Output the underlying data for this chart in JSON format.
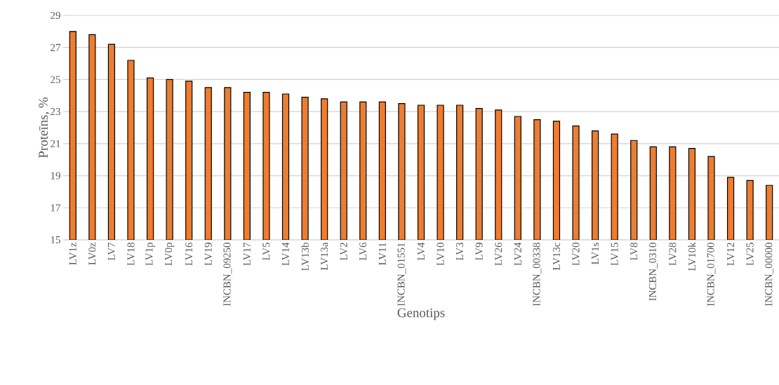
{
  "chart_data": {
    "type": "bar",
    "xlabel": "Genotips",
    "ylabel": "Proteīns, %",
    "categories": [
      "LV1z",
      "LV0z",
      "LV7",
      "LV18",
      "LV1p",
      "LV0p",
      "LV16",
      "LV19",
      "INCBN_09250",
      "LV17",
      "LV5",
      "LV14",
      "LV13b",
      "LV13a",
      "LV2",
      "LV6",
      "LV11",
      "INCBN_01551",
      "LV4",
      "LV10",
      "LV3",
      "LV9",
      "LV26",
      "LV24",
      "INCBN_00338",
      "LV13c",
      "LV20",
      "LV1s",
      "LV15",
      "LV8",
      "INCBN_0310",
      "LV28",
      "LV10k",
      "INCBN_01700",
      "LV12",
      "LV25",
      "INCBN_00000"
    ],
    "values": [
      28.0,
      27.8,
      27.2,
      26.2,
      25.1,
      25.0,
      24.9,
      24.5,
      24.5,
      24.2,
      24.2,
      24.1,
      23.9,
      23.8,
      23.6,
      23.6,
      23.6,
      23.5,
      23.4,
      23.4,
      23.4,
      23.2,
      23.1,
      22.7,
      22.5,
      22.4,
      22.1,
      21.8,
      21.6,
      21.2,
      20.8,
      20.8,
      20.7,
      20.2,
      18.9,
      18.7,
      18.4
    ],
    "color": "#ed7d31",
    "ylim": [
      15,
      29
    ],
    "yticks": [
      15,
      17,
      19,
      21,
      23,
      25,
      27,
      29
    ],
    "grid": "y"
  }
}
